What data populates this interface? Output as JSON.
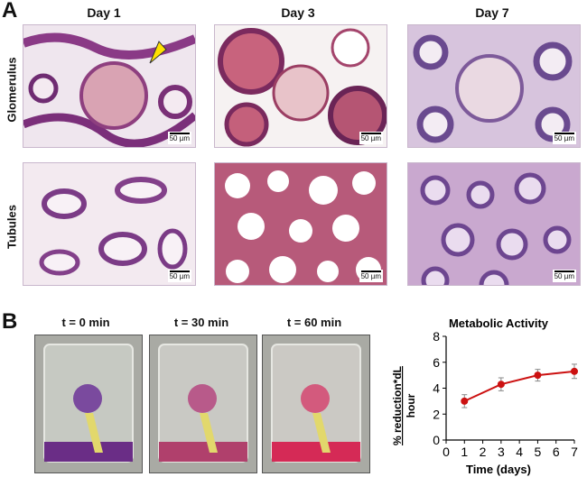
{
  "panel_a": {
    "letter": "A",
    "columns": [
      "Day 1",
      "Day 3",
      "Day 7"
    ],
    "rows": [
      "Glomerulus",
      "Tubules"
    ],
    "scale_label": "50 µm",
    "arrow_color": "#ffe000"
  },
  "panel_b": {
    "letter": "B",
    "photo_labels": [
      "t = 0 min",
      "t = 30 min",
      "t = 60 min"
    ],
    "photo_medium_colors": [
      "#6a2d86",
      "#b0406c",
      "#d52a56"
    ]
  },
  "chart_data": {
    "type": "line",
    "title": "Metabolic Activity",
    "xlabel": "Time (days)",
    "ylabel_line1": "% reduction*dL",
    "ylabel_line2": "hour",
    "xlim": [
      0,
      7
    ],
    "ylim": [
      0,
      8
    ],
    "x_ticks": [
      0,
      1,
      2,
      3,
      4,
      5,
      6,
      7
    ],
    "y_ticks": [
      0,
      2,
      4,
      6,
      8
    ],
    "series": [
      {
        "x": [
          1,
          3,
          5,
          7
        ],
        "y": [
          3.0,
          4.3,
          5.0,
          5.3
        ],
        "err": [
          0.5,
          0.5,
          0.45,
          0.55
        ],
        "color": "#cc1111"
      }
    ]
  }
}
